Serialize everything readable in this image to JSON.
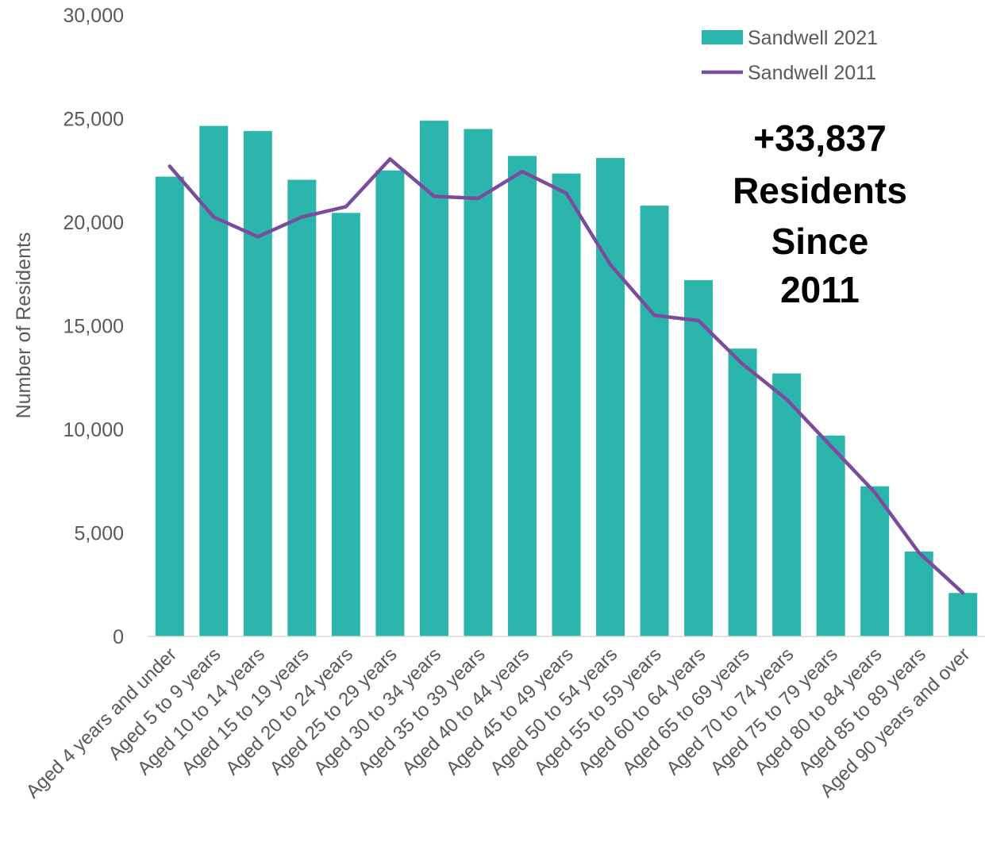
{
  "chart_data": {
    "type": "bar",
    "categories": [
      "Aged 4 years and under",
      "Aged 5 to 9 years",
      "Aged 10 to 14 years",
      "Aged 15 to 19 years",
      "Aged 20 to 24 years",
      "Aged 25 to 29 years",
      "Aged 30 to 34 years",
      "Aged 35 to 39 years",
      "Aged 40 to 44 years",
      "Aged 45 to 49 years",
      "Aged 50 to 54 years",
      "Aged 55 to 59 years",
      "Aged 60 to 64 years",
      "Aged 65 to 69 years",
      "Aged 70 to 74 years",
      "Aged 75 to 79 years",
      "Aged 80 to 84 years",
      "Aged 85 to 89 years",
      "Aged 90 years and over"
    ],
    "series": [
      {
        "name": "Sandwell 2021",
        "kind": "bar",
        "color": "#2cb5ad",
        "values": [
          22200,
          24650,
          24400,
          22050,
          20450,
          22500,
          24900,
          24500,
          23200,
          22350,
          23100,
          20800,
          17200,
          13900,
          12700,
          9700,
          7250,
          4100,
          2100
        ]
      },
      {
        "name": "Sandwell 2011",
        "kind": "line",
        "color": "#7b4c9c",
        "values": [
          22700,
          20250,
          19300,
          20250,
          20750,
          23050,
          21250,
          21150,
          22450,
          21400,
          17950,
          15500,
          15250,
          13150,
          11450,
          9200,
          6950,
          4050,
          2100
        ]
      }
    ],
    "ylabel": "Number of Residents",
    "xlabel": "",
    "ylim": [
      0,
      30000
    ],
    "yticks": [
      0,
      5000,
      10000,
      15000,
      20000,
      25000,
      30000
    ],
    "ytick_labels": [
      "0",
      "5,000",
      "10,000",
      "15,000",
      "20,000",
      "25,000",
      "30,000"
    ],
    "grid": false,
    "legend_position": "top-right",
    "annotation": [
      "+33,837",
      "Residents",
      "Since",
      "2011"
    ]
  }
}
